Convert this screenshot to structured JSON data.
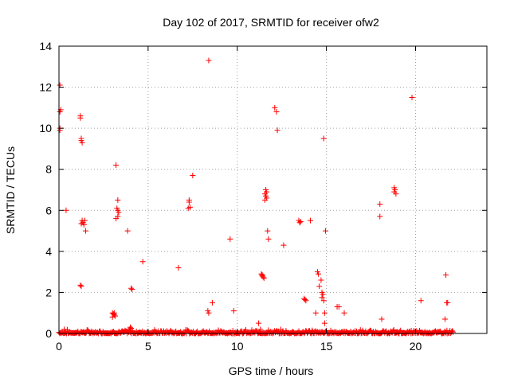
{
  "chart_data": {
    "type": "scatter",
    "title": "Day 102 of 2017, SRMTID for receiver ofw2",
    "xlabel": "GPS time / hours",
    "ylabel": "SRMTID / TECUs",
    "xlim": [
      0,
      24
    ],
    "ylim": [
      0,
      14
    ],
    "xticks": [
      0,
      5,
      10,
      15,
      20
    ],
    "yticks": [
      0,
      2,
      4,
      6,
      8,
      10,
      12,
      14
    ],
    "grid": true,
    "marker": "+",
    "color": "#ff0000",
    "baseline": {
      "x_start": 0.0,
      "x_end": 22.1,
      "y_min": 0.0,
      "y_max": 0.2
    },
    "points": [
      [
        0.05,
        12.1
      ],
      [
        0.1,
        10.9
      ],
      [
        0.05,
        10.8
      ],
      [
        0.05,
        9.9
      ],
      [
        0.05,
        10.0
      ],
      [
        0.4,
        6.0
      ],
      [
        1.2,
        10.6
      ],
      [
        1.2,
        10.5
      ],
      [
        1.25,
        9.5
      ],
      [
        1.25,
        9.4
      ],
      [
        1.3,
        9.3
      ],
      [
        1.3,
        5.5
      ],
      [
        1.35,
        5.4
      ],
      [
        1.4,
        5.3
      ],
      [
        1.25,
        5.35
      ],
      [
        1.45,
        5.5
      ],
      [
        1.5,
        5.0
      ],
      [
        1.2,
        2.35
      ],
      [
        1.25,
        2.3
      ],
      [
        3.0,
        1.0
      ],
      [
        3.05,
        0.95
      ],
      [
        3.1,
        0.9
      ],
      [
        3.15,
        0.85
      ],
      [
        3.0,
        0.8
      ],
      [
        3.1,
        1.0
      ],
      [
        3.2,
        8.2
      ],
      [
        3.3,
        6.5
      ],
      [
        3.25,
        6.1
      ],
      [
        3.3,
        6.0
      ],
      [
        3.35,
        5.9
      ],
      [
        3.3,
        5.7
      ],
      [
        3.2,
        5.6
      ],
      [
        3.85,
        5.0
      ],
      [
        4.05,
        2.2
      ],
      [
        4.1,
        2.15
      ],
      [
        4.7,
        3.5
      ],
      [
        6.7,
        3.2
      ],
      [
        7.3,
        6.5
      ],
      [
        7.3,
        6.4
      ],
      [
        7.25,
        6.1
      ],
      [
        7.35,
        6.15
      ],
      [
        7.5,
        7.7
      ],
      [
        8.4,
        13.3
      ],
      [
        8.35,
        1.1
      ],
      [
        8.4,
        1.0
      ],
      [
        8.6,
        1.5
      ],
      [
        9.6,
        4.6
      ],
      [
        9.8,
        1.1
      ],
      [
        11.2,
        0.5
      ],
      [
        11.35,
        2.9
      ],
      [
        11.4,
        2.8
      ],
      [
        11.45,
        2.75
      ],
      [
        11.5,
        2.7
      ],
      [
        11.4,
        2.85
      ],
      [
        11.6,
        7.0
      ],
      [
        11.65,
        6.9
      ],
      [
        11.55,
        6.8
      ],
      [
        11.6,
        6.7
      ],
      [
        11.65,
        6.6
      ],
      [
        11.55,
        6.5
      ],
      [
        11.7,
        5.0
      ],
      [
        11.75,
        4.6
      ],
      [
        12.1,
        11.0
      ],
      [
        12.2,
        10.8
      ],
      [
        12.25,
        9.9
      ],
      [
        12.6,
        4.3
      ],
      [
        13.45,
        5.5
      ],
      [
        13.5,
        5.4
      ],
      [
        13.55,
        5.45
      ],
      [
        13.75,
        1.7
      ],
      [
        13.8,
        1.65
      ],
      [
        13.85,
        1.6
      ],
      [
        14.1,
        5.5
      ],
      [
        14.4,
        1.0
      ],
      [
        14.5,
        3.0
      ],
      [
        14.55,
        2.9
      ],
      [
        14.7,
        2.6
      ],
      [
        14.6,
        2.3
      ],
      [
        14.75,
        2.0
      ],
      [
        14.8,
        1.9
      ],
      [
        14.75,
        1.75
      ],
      [
        14.85,
        1.6
      ],
      [
        14.9,
        1.0
      ],
      [
        14.9,
        0.5
      ],
      [
        14.85,
        9.5
      ],
      [
        14.95,
        5.0
      ],
      [
        15.6,
        1.3
      ],
      [
        15.7,
        1.3
      ],
      [
        16.0,
        1.0
      ],
      [
        18.0,
        6.3
      ],
      [
        18.0,
        5.7
      ],
      [
        18.1,
        0.7
      ],
      [
        18.8,
        7.1
      ],
      [
        18.85,
        7.0
      ],
      [
        18.8,
        6.9
      ],
      [
        18.9,
        6.8
      ],
      [
        19.8,
        11.5
      ],
      [
        20.3,
        1.6
      ],
      [
        21.65,
        0.7
      ],
      [
        21.7,
        2.85
      ],
      [
        21.75,
        1.5
      ],
      [
        21.8,
        1.5
      ]
    ]
  }
}
